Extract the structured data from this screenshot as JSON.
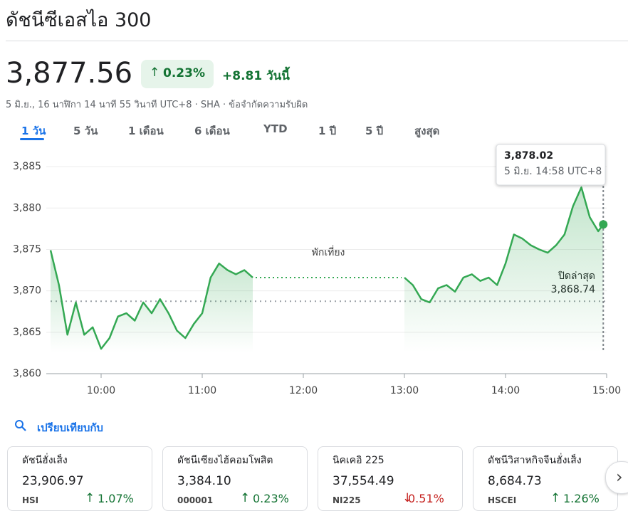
{
  "title": "ดัชนีซีเอสไอ 300",
  "price": "3,877.56",
  "change_pct": "0.23%",
  "change_abs": "+8.81 วันนี้",
  "meta": "5 มิ.ย., 16 นาฬิกา 14 นาที 55 วินาที UTC+8 · SHA · ข้อจำกัดความรับผิด",
  "tabs": [
    "1 วัน",
    "5 วัน",
    "1 เดือน",
    "6 เดือน",
    "YTD",
    "1 ปี",
    "5 ปี",
    "สูงสุด"
  ],
  "chart_data": {
    "type": "line",
    "color": "#34a853",
    "x": [
      570,
      575,
      580,
      585,
      590,
      595,
      600,
      605,
      610,
      615,
      620,
      625,
      630,
      635,
      640,
      645,
      650,
      655,
      660,
      665,
      670,
      675,
      680,
      685,
      690,
      720,
      780,
      785,
      790,
      795,
      800,
      805,
      810,
      815,
      820,
      825,
      830,
      835,
      840,
      845,
      850,
      855,
      860,
      865,
      870,
      875,
      880,
      885,
      890,
      895,
      898
    ],
    "values": [
      3874.9,
      3870.7,
      3864.7,
      3868.6,
      3864.7,
      3865.6,
      3863.0,
      3864.3,
      3866.9,
      3867.3,
      3866.4,
      3868.6,
      3867.3,
      3869.0,
      3867.3,
      3865.2,
      3864.3,
      3866.0,
      3867.3,
      3871.6,
      3873.3,
      3872.5,
      3872.0,
      3872.5,
      3871.6,
      null,
      3871.6,
      3870.7,
      3869.0,
      3868.6,
      3870.3,
      3870.7,
      3869.9,
      3871.6,
      3872.0,
      3871.2,
      3871.6,
      3870.7,
      3873.3,
      3876.8,
      3876.3,
      3875.5,
      3875.0,
      3874.6,
      3875.5,
      3876.8,
      3880.2,
      3882.5,
      3878.9,
      3877.2,
      3878.02
    ],
    "xlim": [
      570,
      900
    ],
    "xticks": [
      {
        "value": 600,
        "label": "10:00"
      },
      {
        "value": 660,
        "label": "11:00"
      },
      {
        "value": 720,
        "label": "12:00"
      },
      {
        "value": 780,
        "label": "13:00"
      },
      {
        "value": 840,
        "label": "14:00"
      },
      {
        "value": 900,
        "label": "15:00"
      }
    ],
    "ylim": [
      3860,
      3887.5
    ],
    "yticks": [
      {
        "value": 3860,
        "label": "3,860"
      },
      {
        "value": 3865,
        "label": "3,865"
      },
      {
        "value": 3870,
        "label": "3,870"
      },
      {
        "value": 3875,
        "label": "3,875"
      },
      {
        "value": 3880,
        "label": "3,880"
      },
      {
        "value": 3885,
        "label": "3,885"
      }
    ],
    "grid": true,
    "annotation": "พักเที่ยง",
    "previous_close_title": "ปิดล่าสุด",
    "previous_close": 3868.74,
    "previous_close_label": "3,868.74",
    "tooltip_value": "3,878.02",
    "tooltip_time": "5 มิ.ย. 14:58 UTC+8"
  },
  "compare_title": "เปรียบเทียบกับ",
  "cards": [
    {
      "name": "ดัชนีฮั่งเส็ง",
      "price": "23,906.97",
      "code": "HSI",
      "change": "1.07%",
      "color": "#137333"
    },
    {
      "name": "ดัชนีเซียงไฮ้คอมโพสิต",
      "price": "3,384.10",
      "code": "000001",
      "change": "0.23%",
      "color": "#137333"
    },
    {
      "name": "นิคเคอิ 225",
      "price": "37,554.49",
      "code": "NI225",
      "change": "0.51%",
      "color": "#c5221f"
    },
    {
      "name": "ดัชนีวิสาหกิจจีนฮั่งเส็ง",
      "price": "8,684.73",
      "code": "HSCEI",
      "change": "1.26%",
      "color": "#137333"
    }
  ]
}
